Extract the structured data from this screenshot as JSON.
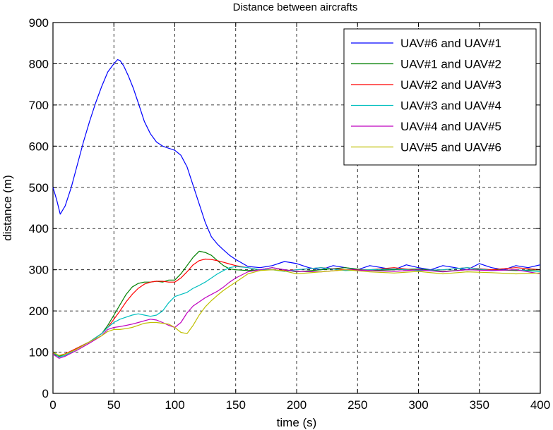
{
  "chart_data": {
    "type": "line",
    "title": "Distance between aircrafts",
    "xlabel": "time (s)",
    "ylabel": "distance (m)",
    "xlim": [
      0,
      400
    ],
    "ylim": [
      0,
      900
    ],
    "xticks": [
      0,
      50,
      100,
      150,
      200,
      250,
      300,
      350,
      400
    ],
    "yticks": [
      0,
      100,
      200,
      300,
      400,
      500,
      600,
      700,
      800,
      900
    ],
    "grid": true,
    "legend_position": "top-right",
    "series": [
      {
        "name": "UAV#6 and UAV#1",
        "color": "#0000ff",
        "x": [
          0,
          3,
          6,
          10,
          15,
          20,
          25,
          30,
          35,
          40,
          45,
          50,
          53,
          55,
          58,
          62,
          66,
          70,
          75,
          80,
          85,
          90,
          95,
          100,
          105,
          110,
          115,
          120,
          125,
          130,
          135,
          140,
          145,
          150,
          160,
          170,
          180,
          190,
          200,
          210,
          220,
          230,
          240,
          250,
          260,
          270,
          280,
          290,
          300,
          310,
          320,
          330,
          340,
          350,
          360,
          370,
          380,
          390,
          400
        ],
        "y": [
          500,
          470,
          435,
          455,
          500,
          555,
          610,
          660,
          705,
          745,
          780,
          800,
          810,
          808,
          795,
          770,
          740,
          705,
          660,
          630,
          610,
          600,
          595,
          590,
          578,
          550,
          505,
          460,
          415,
          380,
          362,
          348,
          335,
          325,
          308,
          305,
          310,
          320,
          315,
          305,
          300,
          310,
          305,
          300,
          310,
          305,
          300,
          312,
          305,
          300,
          310,
          305,
          300,
          315,
          305,
          300,
          310,
          305,
          312
        ]
      },
      {
        "name": "UAV#1 and UAV#2",
        "color": "#007f00",
        "x": [
          0,
          5,
          10,
          20,
          30,
          40,
          45,
          50,
          55,
          60,
          65,
          70,
          75,
          80,
          85,
          90,
          95,
          100,
          105,
          110,
          115,
          120,
          125,
          130,
          135,
          140,
          145,
          150,
          160,
          170,
          180,
          190,
          200,
          220,
          240,
          260,
          280,
          300,
          320,
          340,
          360,
          380,
          400
        ],
        "y": [
          95,
          90,
          95,
          110,
          125,
          145,
          165,
          190,
          215,
          240,
          258,
          267,
          270,
          270,
          272,
          270,
          275,
          275,
          290,
          310,
          330,
          345,
          342,
          335,
          322,
          310,
          302,
          300,
          298,
          300,
          305,
          300,
          295,
          300,
          305,
          298,
          300,
          302,
          296,
          300,
          300,
          298,
          300
        ]
      },
      {
        "name": "UAV#2 and UAV#3",
        "color": "#ff0000",
        "x": [
          0,
          5,
          10,
          20,
          30,
          40,
          45,
          50,
          55,
          60,
          65,
          70,
          75,
          80,
          85,
          90,
          95,
          100,
          105,
          110,
          115,
          120,
          125,
          130,
          135,
          140,
          145,
          150,
          160,
          170,
          180,
          190,
          200,
          220,
          240,
          260,
          280,
          300,
          320,
          340,
          360,
          380,
          400
        ],
        "y": [
          98,
          92,
          96,
          110,
          125,
          145,
          160,
          180,
          200,
          222,
          240,
          255,
          265,
          270,
          272,
          272,
          270,
          270,
          280,
          295,
          312,
          322,
          326,
          325,
          322,
          318,
          314,
          310,
          305,
          300,
          300,
          298,
          300,
          305,
          300,
          300,
          305,
          298,
          300,
          305,
          300,
          305,
          300
        ]
      },
      {
        "name": "UAV#3 and UAV#4",
        "color": "#00bfbf",
        "x": [
          0,
          5,
          10,
          20,
          30,
          40,
          45,
          50,
          55,
          60,
          65,
          70,
          75,
          80,
          85,
          90,
          95,
          100,
          105,
          110,
          115,
          120,
          125,
          130,
          135,
          140,
          145,
          150,
          160,
          170,
          180,
          190,
          200,
          220,
          240,
          260,
          280,
          300,
          320,
          340,
          360,
          380,
          400
        ],
        "y": [
          100,
          88,
          92,
          108,
          125,
          145,
          160,
          172,
          180,
          185,
          190,
          193,
          190,
          187,
          190,
          200,
          220,
          235,
          240,
          245,
          255,
          262,
          270,
          280,
          290,
          298,
          305,
          308,
          305,
          300,
          300,
          296,
          300,
          305,
          298,
          300,
          302,
          298,
          300,
          305,
          298,
          300,
          295
        ]
      },
      {
        "name": "UAV#4 and UAV#5",
        "color": "#bf00bf",
        "x": [
          0,
          5,
          10,
          20,
          30,
          40,
          45,
          50,
          55,
          60,
          65,
          70,
          75,
          80,
          85,
          90,
          95,
          100,
          105,
          110,
          115,
          120,
          125,
          130,
          135,
          140,
          145,
          150,
          160,
          170,
          180,
          190,
          200,
          220,
          240,
          260,
          280,
          300,
          320,
          340,
          360,
          380,
          400
        ],
        "y": [
          95,
          85,
          90,
          105,
          122,
          140,
          155,
          160,
          162,
          165,
          168,
          172,
          176,
          180,
          178,
          172,
          165,
          160,
          172,
          195,
          212,
          222,
          232,
          240,
          248,
          258,
          270,
          280,
          295,
          300,
          305,
          300,
          296,
          295,
          300,
          298,
          296,
          300,
          295,
          300,
          298,
          300,
          290
        ]
      },
      {
        "name": "UAV#5 and UAV#6",
        "color": "#bfbf00",
        "x": [
          0,
          5,
          10,
          20,
          30,
          40,
          45,
          50,
          55,
          60,
          65,
          70,
          75,
          80,
          85,
          90,
          95,
          100,
          105,
          110,
          115,
          120,
          125,
          130,
          135,
          140,
          145,
          150,
          160,
          170,
          180,
          190,
          200,
          220,
          240,
          260,
          280,
          300,
          320,
          340,
          360,
          380,
          400
        ],
        "y": [
          100,
          92,
          95,
          108,
          125,
          140,
          150,
          155,
          155,
          157,
          160,
          165,
          170,
          172,
          172,
          170,
          168,
          160,
          148,
          145,
          165,
          190,
          210,
          225,
          238,
          250,
          260,
          270,
          290,
          298,
          300,
          297,
          290,
          295,
          300,
          295,
          292,
          296,
          290,
          295,
          293,
          290,
          292
        ]
      }
    ]
  }
}
